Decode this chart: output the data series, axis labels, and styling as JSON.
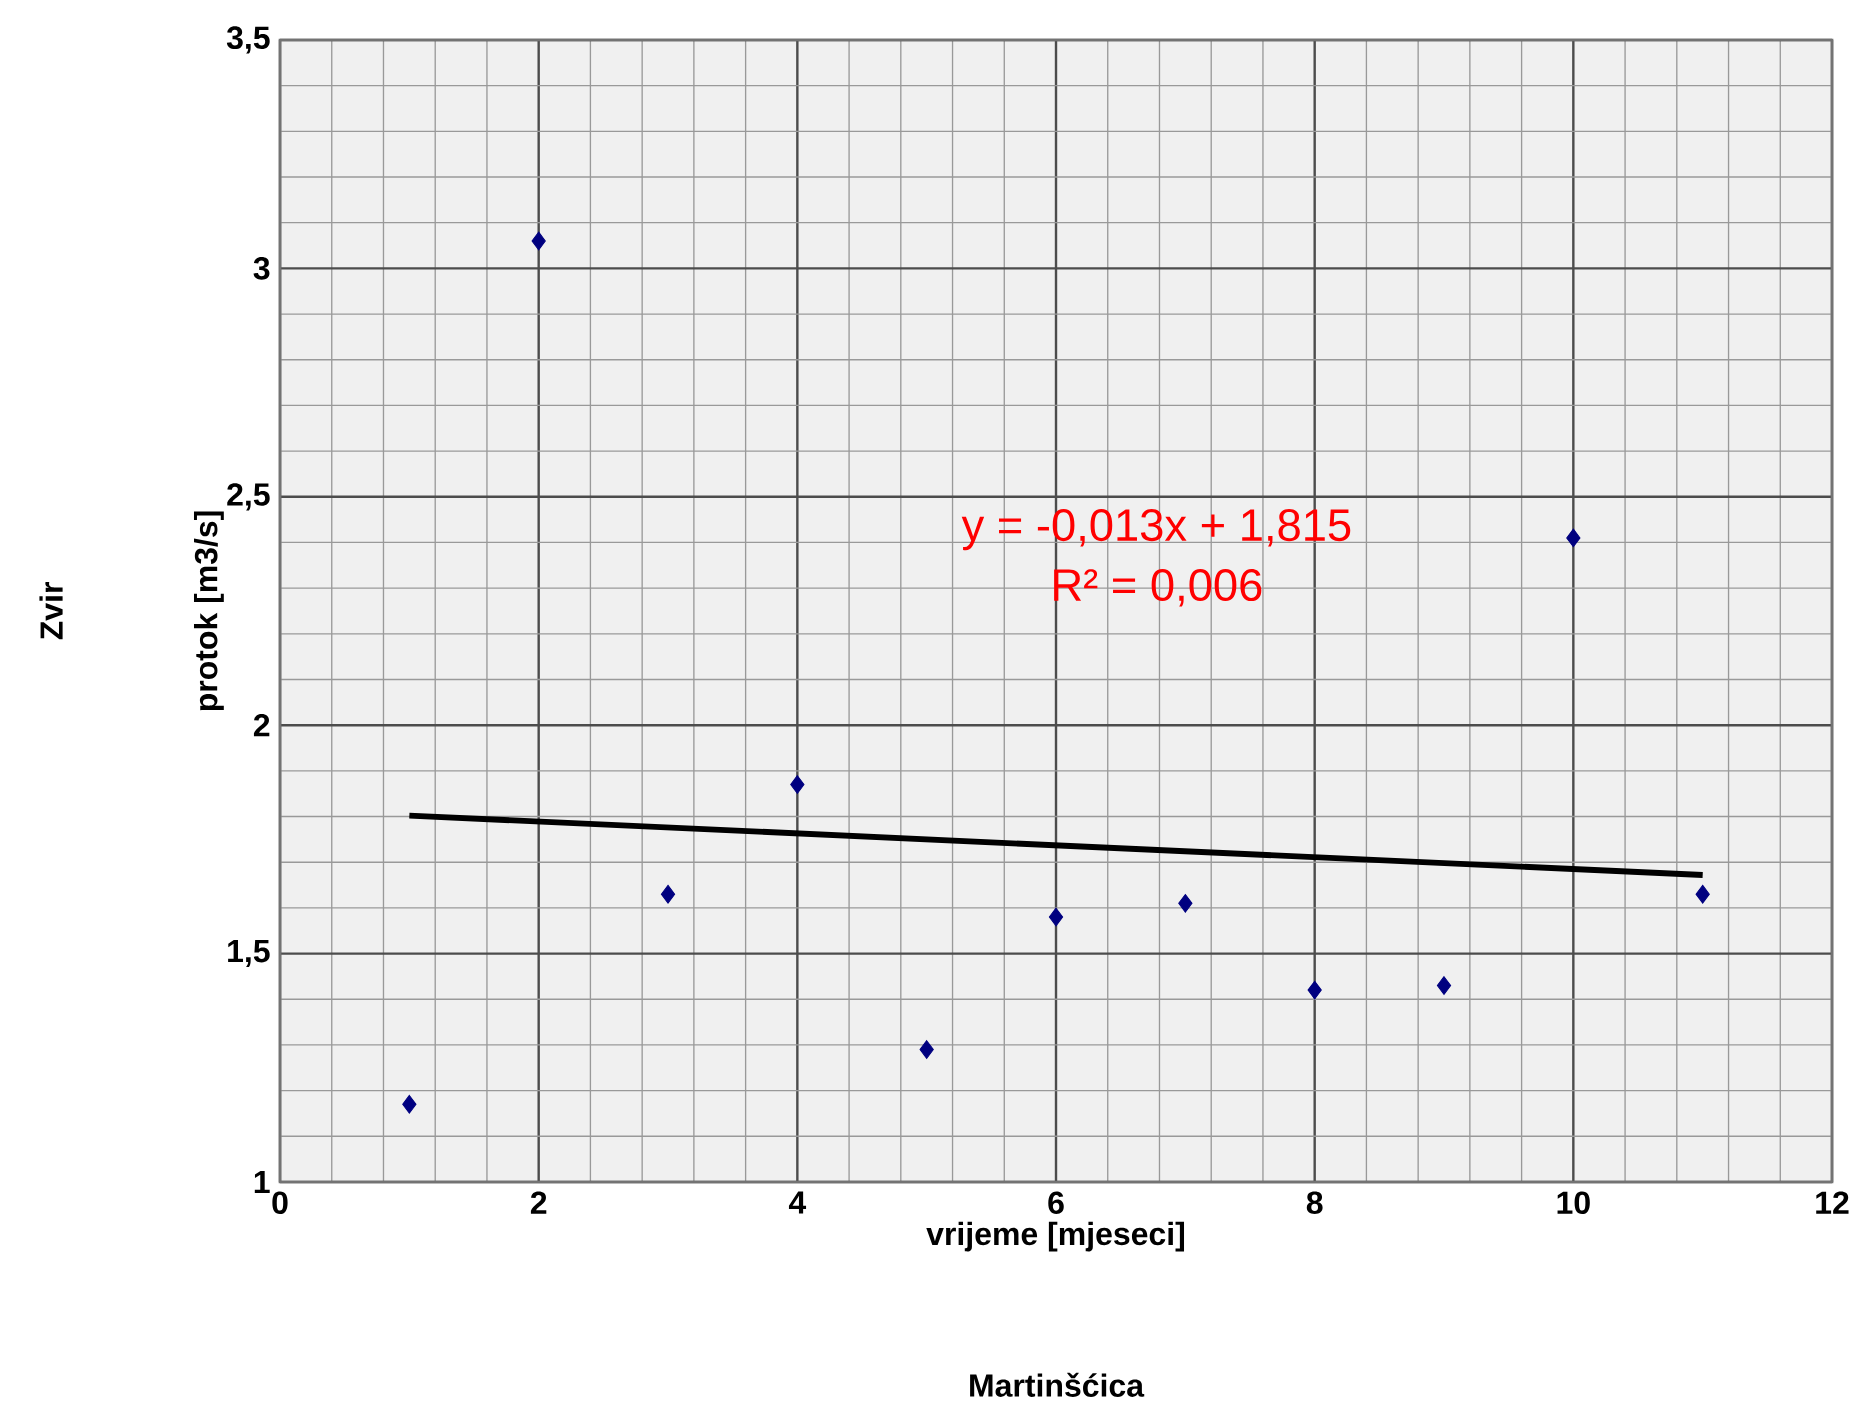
{
  "chart_data": {
    "type": "scatter",
    "title": "Martinšćica",
    "xlabel": "vrijeme [mjeseci]",
    "ylabel": "protok [m3/s]",
    "annotations": [
      "Zvir",
      "y = -0,013x + 1,815",
      "R² = 0,006"
    ],
    "xlim": [
      0,
      12
    ],
    "xticks": [
      0,
      2,
      4,
      6,
      8,
      10,
      12
    ],
    "ylim": [
      1,
      3.5
    ],
    "yticks": [
      1,
      {
        "value": 1.5,
        "label": "1,5"
      },
      2,
      {
        "value": 2.5,
        "label": "2,5"
      },
      3,
      {
        "value": 3.5,
        "label": "3,5"
      }
    ],
    "grid": true,
    "marker": "diamond",
    "series": [
      {
        "color": "#000080",
        "x": [
          1,
          2,
          3,
          4,
          5,
          6,
          7,
          8,
          9,
          10,
          11
        ],
        "values": [
          1.17,
          3.06,
          1.63,
          1.87,
          1.29,
          1.58,
          1.61,
          1.42,
          1.43,
          2.41,
          1.63
        ]
      },
      {
        "type": "line",
        "marker": "none",
        "color": "#000000",
        "x": [
          1,
          11
        ],
        "values": [
          1.802,
          1.672
        ]
      }
    ]
  }
}
